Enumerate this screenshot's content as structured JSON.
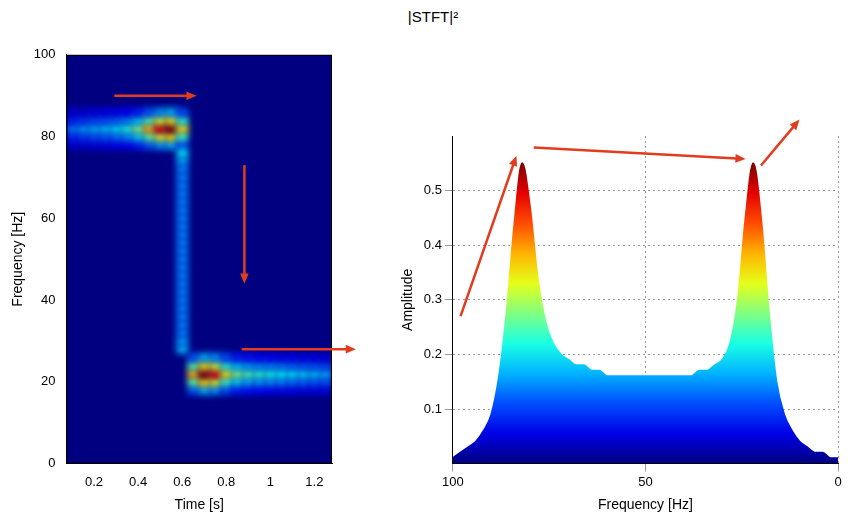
{
  "title": "|STFT|²",
  "chart_data": [
    {
      "type": "heatmap",
      "x_label": "Time [s]",
      "y_label": "Frequency [Hz]",
      "xlim": [
        0.075,
        1.28
      ],
      "xticks": [
        0.2,
        0.4,
        0.6,
        0.8,
        1,
        1.2
      ],
      "ylim": [
        0,
        100
      ],
      "yticks": [
        0,
        20,
        40,
        60,
        80,
        100
      ],
      "grid": false,
      "cells": [
        [
          0.1,
          78,
          0.08
        ],
        [
          0.1,
          80,
          0.16
        ],
        [
          0.1,
          82,
          0.25
        ],
        [
          0.1,
          84,
          0.16
        ],
        [
          0.1,
          86,
          0.08
        ],
        [
          0.15,
          78,
          0.08
        ],
        [
          0.15,
          80,
          0.18
        ],
        [
          0.15,
          82,
          0.28
        ],
        [
          0.15,
          84,
          0.18
        ],
        [
          0.15,
          86,
          0.08
        ],
        [
          0.2,
          78,
          0.09
        ],
        [
          0.2,
          80,
          0.2
        ],
        [
          0.2,
          82,
          0.3
        ],
        [
          0.2,
          84,
          0.2
        ],
        [
          0.2,
          86,
          0.09
        ],
        [
          0.25,
          78,
          0.1
        ],
        [
          0.25,
          80,
          0.21
        ],
        [
          0.25,
          82,
          0.32
        ],
        [
          0.25,
          84,
          0.21
        ],
        [
          0.25,
          86,
          0.1
        ],
        [
          0.3,
          78,
          0.11
        ],
        [
          0.3,
          80,
          0.23
        ],
        [
          0.3,
          82,
          0.35
        ],
        [
          0.3,
          84,
          0.23
        ],
        [
          0.3,
          86,
          0.11
        ],
        [
          0.35,
          78,
          0.12
        ],
        [
          0.35,
          80,
          0.26
        ],
        [
          0.35,
          82,
          0.4
        ],
        [
          0.35,
          84,
          0.26
        ],
        [
          0.35,
          86,
          0.12
        ],
        [
          0.4,
          78,
          0.15
        ],
        [
          0.4,
          80,
          0.33
        ],
        [
          0.4,
          82,
          0.5
        ],
        [
          0.4,
          84,
          0.33
        ],
        [
          0.4,
          86,
          0.15
        ],
        [
          0.45,
          78,
          0.21
        ],
        [
          0.45,
          80,
          0.46
        ],
        [
          0.45,
          82,
          0.7
        ],
        [
          0.45,
          84,
          0.46
        ],
        [
          0.45,
          86,
          0.21
        ],
        [
          0.5,
          78,
          0.27
        ],
        [
          0.5,
          80,
          0.59
        ],
        [
          0.5,
          82,
          0.9
        ],
        [
          0.5,
          84,
          0.59
        ],
        [
          0.5,
          86,
          0.27
        ],
        [
          0.55,
          78,
          0.3
        ],
        [
          0.55,
          80,
          0.65
        ],
        [
          0.55,
          82,
          1
        ],
        [
          0.55,
          84,
          0.65
        ],
        [
          0.55,
          86,
          0.3
        ],
        [
          0.6,
          78,
          0.2
        ],
        [
          0.6,
          80,
          0.42
        ],
        [
          0.6,
          82,
          0.65
        ],
        [
          0.6,
          84,
          0.42
        ],
        [
          0.6,
          86,
          0.2
        ],
        [
          0.6,
          28,
          0.3
        ],
        [
          0.6,
          30,
          0.28
        ],
        [
          0.6,
          32,
          0.25
        ],
        [
          0.6,
          34,
          0.25
        ],
        [
          0.6,
          36,
          0.25
        ],
        [
          0.6,
          38,
          0.25
        ],
        [
          0.6,
          40,
          0.25
        ],
        [
          0.6,
          42,
          0.25
        ],
        [
          0.6,
          44,
          0.25
        ],
        [
          0.6,
          46,
          0.25
        ],
        [
          0.6,
          48,
          0.25
        ],
        [
          0.6,
          50,
          0.25
        ],
        [
          0.6,
          52,
          0.25
        ],
        [
          0.6,
          54,
          0.25
        ],
        [
          0.6,
          56,
          0.25
        ],
        [
          0.6,
          58,
          0.25
        ],
        [
          0.6,
          60,
          0.25
        ],
        [
          0.6,
          62,
          0.25
        ],
        [
          0.6,
          64,
          0.25
        ],
        [
          0.6,
          66,
          0.25
        ],
        [
          0.6,
          68,
          0.25
        ],
        [
          0.6,
          70,
          0.25
        ],
        [
          0.6,
          72,
          0.25
        ],
        [
          0.6,
          74,
          0.28
        ],
        [
          0.6,
          76,
          0.35
        ],
        [
          0.65,
          18,
          0.21
        ],
        [
          0.65,
          20,
          0.46
        ],
        [
          0.65,
          22,
          0.7
        ],
        [
          0.65,
          24,
          0.46
        ],
        [
          0.65,
          26,
          0.21
        ],
        [
          0.7,
          18,
          0.3
        ],
        [
          0.7,
          20,
          0.65
        ],
        [
          0.7,
          22,
          1
        ],
        [
          0.7,
          24,
          0.65
        ],
        [
          0.7,
          26,
          0.3
        ],
        [
          0.75,
          18,
          0.27
        ],
        [
          0.75,
          20,
          0.59
        ],
        [
          0.75,
          22,
          0.9
        ],
        [
          0.75,
          24,
          0.59
        ],
        [
          0.75,
          26,
          0.27
        ],
        [
          0.8,
          18,
          0.2
        ],
        [
          0.8,
          20,
          0.42
        ],
        [
          0.8,
          22,
          0.65
        ],
        [
          0.8,
          24,
          0.42
        ],
        [
          0.8,
          26,
          0.2
        ],
        [
          0.85,
          18,
          0.15
        ],
        [
          0.85,
          20,
          0.33
        ],
        [
          0.85,
          22,
          0.5
        ],
        [
          0.85,
          24,
          0.33
        ],
        [
          0.85,
          26,
          0.15
        ],
        [
          0.9,
          18,
          0.14
        ],
        [
          0.9,
          20,
          0.29
        ],
        [
          0.9,
          22,
          0.45
        ],
        [
          0.9,
          24,
          0.29
        ],
        [
          0.9,
          26,
          0.14
        ],
        [
          0.95,
          18,
          0.13
        ],
        [
          0.95,
          20,
          0.27
        ],
        [
          0.95,
          22,
          0.42
        ],
        [
          0.95,
          24,
          0.27
        ],
        [
          0.95,
          26,
          0.13
        ],
        [
          1,
          18,
          0.12
        ],
        [
          1,
          20,
          0.26
        ],
        [
          1,
          22,
          0.4
        ],
        [
          1,
          24,
          0.26
        ],
        [
          1,
          26,
          0.12
        ],
        [
          1.05,
          18,
          0.11
        ],
        [
          1.05,
          20,
          0.25
        ],
        [
          1.05,
          22,
          0.38
        ],
        [
          1.05,
          24,
          0.25
        ],
        [
          1.05,
          26,
          0.11
        ],
        [
          1.1,
          18,
          0.11
        ],
        [
          1.1,
          20,
          0.23
        ],
        [
          1.1,
          22,
          0.36
        ],
        [
          1.1,
          24,
          0.23
        ],
        [
          1.1,
          26,
          0.11
        ],
        [
          1.15,
          18,
          0.1
        ],
        [
          1.15,
          20,
          0.22
        ],
        [
          1.15,
          22,
          0.34
        ],
        [
          1.15,
          24,
          0.22
        ],
        [
          1.15,
          26,
          0.1
        ],
        [
          1.2,
          18,
          0.1
        ],
        [
          1.2,
          20,
          0.21
        ],
        [
          1.2,
          22,
          0.32
        ],
        [
          1.2,
          24,
          0.21
        ],
        [
          1.2,
          26,
          0.1
        ],
        [
          1.25,
          18,
          0.09
        ],
        [
          1.25,
          20,
          0.2
        ],
        [
          1.25,
          22,
          0.3
        ],
        [
          1.25,
          24,
          0.2
        ],
        [
          1.25,
          26,
          0.09
        ]
      ]
    },
    {
      "type": "line",
      "x_label": "Frequency [Hz]",
      "y_label": "Amplitude",
      "xlim": [
        100,
        0
      ],
      "xticks": [
        100,
        50,
        0
      ],
      "ylim": [
        0,
        0.6
      ],
      "yticks": [
        0.1,
        0.2,
        0.3,
        0.4,
        0.5
      ],
      "grid": true,
      "x": [
        0,
        2,
        4,
        6,
        8,
        10,
        12,
        14,
        16,
        18,
        20,
        22,
        24,
        26,
        28,
        30,
        32,
        34,
        36,
        38,
        40,
        42,
        44,
        46,
        48,
        50,
        52,
        54,
        56,
        58,
        60,
        62,
        64,
        66,
        68,
        70,
        72,
        74,
        76,
        78,
        80,
        82,
        84,
        86,
        88,
        90,
        92,
        94,
        96,
        98,
        100
      ],
      "values": [
        0.01,
        0.01,
        0.02,
        0.02,
        0.03,
        0.04,
        0.06,
        0.09,
        0.15,
        0.28,
        0.45,
        0.55,
        0.45,
        0.3,
        0.22,
        0.19,
        0.18,
        0.17,
        0.17,
        0.16,
        0.16,
        0.16,
        0.16,
        0.16,
        0.16,
        0.16,
        0.16,
        0.16,
        0.16,
        0.16,
        0.16,
        0.17,
        0.17,
        0.18,
        0.18,
        0.19,
        0.2,
        0.22,
        0.26,
        0.34,
        0.47,
        0.55,
        0.44,
        0.28,
        0.16,
        0.09,
        0.06,
        0.04,
        0.03,
        0.02,
        0.01
      ]
    }
  ]
}
